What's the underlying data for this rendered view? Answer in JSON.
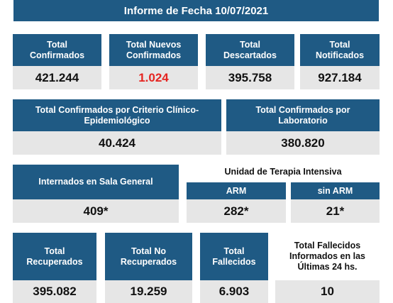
{
  "report_title": "Informe de Fecha 10/07/2021",
  "colors": {
    "header_bg": "#1f5a84",
    "value_bg": "#e6e6e6",
    "highlight": "#e52521"
  },
  "row1": [
    {
      "label": "Total\nConfirmados",
      "value": "421.244"
    },
    {
      "label": "Total Nuevos\nConfirmados",
      "value": "1.024"
    },
    {
      "label": "Total\nDescartados",
      "value": "395.758"
    },
    {
      "label": "Total\nNotificados",
      "value": "927.184"
    }
  ],
  "row2": [
    {
      "label": "Total Confirmados por Criterio Clínico-\nEpidemiológico",
      "value": "40.424"
    },
    {
      "label": "Total Confirmados por\nLaboratorio",
      "value": "380.820"
    }
  ],
  "row3": {
    "general": {
      "label": "Internados en Sala General",
      "value": "409*"
    },
    "uti_title": "Unidad de Terapia Intensiva",
    "arm": {
      "label": "ARM",
      "value": "282*"
    },
    "sin_arm": {
      "label": "sin ARM",
      "value": "21*"
    }
  },
  "row4": [
    {
      "label": "Total\nRecuperados",
      "value": "395.082"
    },
    {
      "label": "Total No\nRecuperados",
      "value": "19.259"
    },
    {
      "label": "Total\nFallecidos",
      "value": "6.903"
    },
    {
      "label": "Total Fallecidos\nInformados en las\nÚltimas 24 hs.",
      "value": "10"
    }
  ]
}
